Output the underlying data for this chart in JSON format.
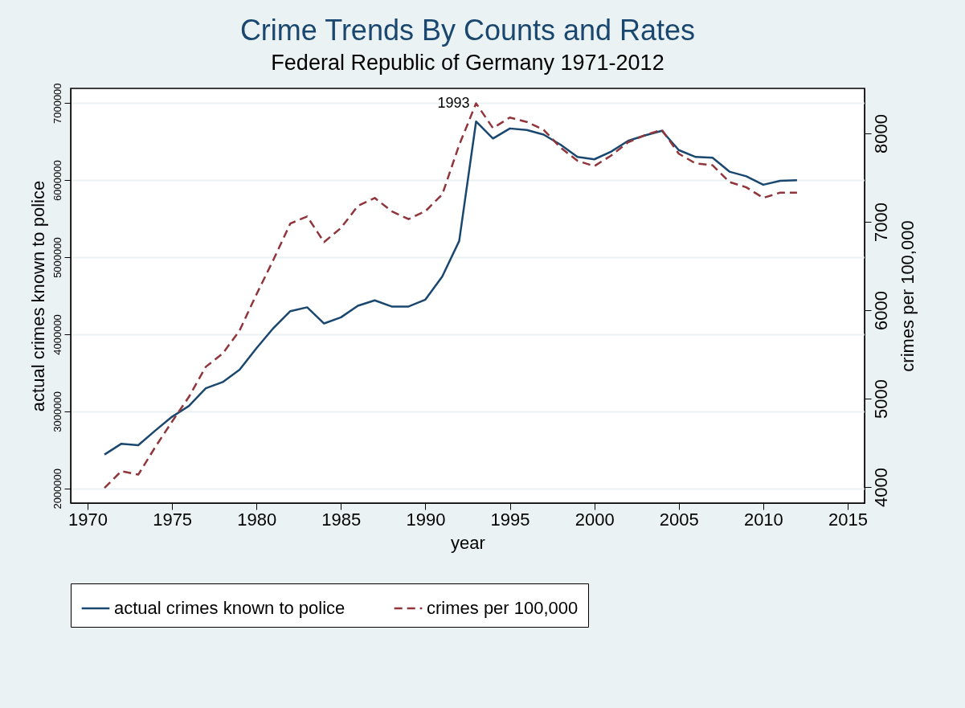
{
  "chart_data": {
    "type": "line",
    "title": "Crime Trends By Counts and Rates",
    "subtitle": "Federal Republic of Germany 1971-2012",
    "xlabel": "year",
    "ylabel": "actual crimes known to police",
    "y2label": "crimes per 100,000",
    "x": [
      1971,
      1972,
      1973,
      1974,
      1975,
      1976,
      1977,
      1978,
      1979,
      1980,
      1981,
      1982,
      1983,
      1984,
      1985,
      1986,
      1987,
      1988,
      1989,
      1990,
      1991,
      1992,
      1993,
      1994,
      1995,
      1996,
      1997,
      1998,
      1999,
      2000,
      2001,
      2002,
      2003,
      2004,
      2005,
      2006,
      2007,
      2008,
      2009,
      2010,
      2011,
      2012
    ],
    "series": [
      {
        "name": "actual crimes known to police",
        "color": "#1a476f",
        "line_style": "solid",
        "values": [
          2440000,
          2580000,
          2560000,
          2750000,
          2930000,
          3070000,
          3300000,
          3380000,
          3540000,
          3820000,
          4080000,
          4300000,
          4350000,
          4140000,
          4220000,
          4370000,
          4440000,
          4360000,
          4360000,
          4450000,
          4750000,
          5210000,
          6760000,
          6540000,
          6670000,
          6650000,
          6590000,
          6460000,
          6300000,
          6270000,
          6370000,
          6510000,
          6580000,
          6640000,
          6390000,
          6300000,
          6290000,
          6110000,
          6050000,
          5940000,
          5990000,
          6000000
        ]
      },
      {
        "name": "crimes per 100,000",
        "color": "#90353b",
        "line_style": "dashed",
        "axis": "y2",
        "values": [
          3990,
          4180,
          4140,
          4450,
          4740,
          5020,
          5360,
          5510,
          5770,
          6180,
          6570,
          6980,
          7060,
          6770,
          6930,
          7180,
          7270,
          7120,
          7030,
          7120,
          7310,
          7870,
          8340,
          8060,
          8180,
          8130,
          8040,
          7840,
          7690,
          7630,
          7750,
          7900,
          7980,
          8040,
          7770,
          7660,
          7640,
          7450,
          7390,
          7270,
          7330,
          7330
        ]
      }
    ],
    "xlim": [
      1969,
      2016
    ],
    "xticks": [
      1970,
      1975,
      1980,
      1985,
      1990,
      1995,
      2000,
      2005,
      2010,
      2015
    ],
    "ylim": [
      1810000,
      7190000
    ],
    "yticks": [
      2000000,
      3000000,
      4000000,
      5000000,
      6000000,
      7000000
    ],
    "y2lim": [
      3818,
      8509
    ],
    "y2ticks": [
      4000,
      5000,
      6000,
      7000,
      8000
    ],
    "grid": "y",
    "legend": "bottom",
    "annotations": [
      "1993"
    ]
  }
}
